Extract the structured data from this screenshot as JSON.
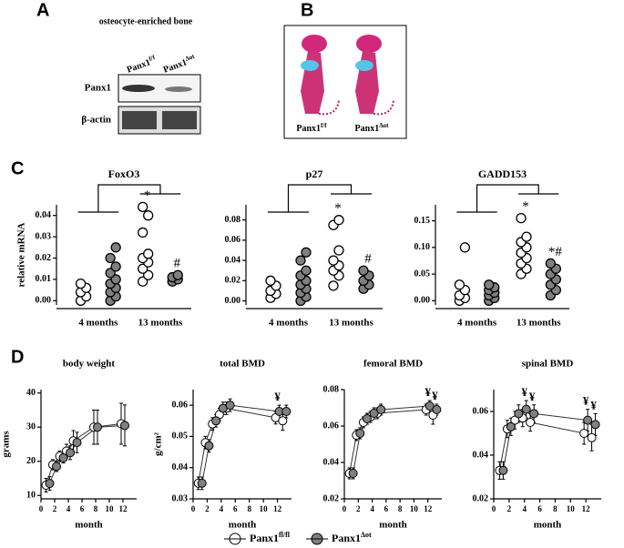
{
  "panel_labels": [
    "A",
    "B",
    "C",
    "D"
  ],
  "blot": {
    "title": "osteocyte-enriched bone",
    "lanes": [
      {
        "base": "Panx1",
        "sup": "f/f"
      },
      {
        "base": "Panx1",
        "sup": "Δot"
      }
    ],
    "rows": [
      "Panx1",
      "β-actin"
    ]
  },
  "skeleton": {
    "labels": [
      {
        "base": "Panx1",
        "sup": "f/f"
      },
      {
        "base": "Panx1",
        "sup": "Δot"
      }
    ]
  },
  "legend": [
    {
      "base": "Panx1",
      "sup": "fl/fl",
      "color": "#ffffff"
    },
    {
      "base": "Panx1",
      "sup": "Δot",
      "color": "#808080"
    }
  ],
  "chart_data": [
    {
      "type": "dot",
      "title": "FoxO3",
      "ylabel": "relative mRNA",
      "categories": [
        "4 months",
        "13 months"
      ],
      "ylim": [
        -0.002,
        0.045
      ],
      "yticks": [
        {
          "value": 0,
          "label": "0.00"
        },
        0.01,
        0.02,
        0.03,
        0.04
      ],
      "series": [
        {
          "color": "#ffffff",
          "values": [
            [
              0.0,
              0.002,
              0.004,
              0.006,
              0.008
            ],
            [
              0.009,
              0.012,
              0.015,
              0.018,
              0.02,
              0.022,
              0.032,
              0.04,
              0.044
            ]
          ],
          "annotations": [
            null,
            "*"
          ]
        },
        {
          "color": "#808080",
          "values": [
            [
              0.0,
              0.002,
              0.004,
              0.006,
              0.008,
              0.01,
              0.013,
              0.016,
              0.02,
              0.025
            ],
            [
              0.009,
              0.01,
              0.011,
              0.012
            ]
          ],
          "annotations": [
            null,
            "#"
          ]
        }
      ]
    },
    {
      "type": "dot",
      "title": "p27",
      "categories": [
        "4 months",
        "13 months"
      ],
      "ylim": [
        -0.004,
        0.095
      ],
      "yticks": [
        {
          "value": 0,
          "label": "0.00"
        },
        0.02,
        0.04,
        0.06,
        0.08
      ],
      "series": [
        {
          "color": "#ffffff",
          "values": [
            [
              0.003,
              0.007,
              0.01,
              0.015,
              0.02
            ],
            [
              0.015,
              0.025,
              0.03,
              0.035,
              0.04,
              0.05,
              0.075,
              0.08
            ]
          ],
          "annotations": [
            null,
            "*"
          ]
        },
        {
          "color": "#808080",
          "values": [
            [
              0.0,
              0.004,
              0.008,
              0.012,
              0.016,
              0.02,
              0.025,
              0.03,
              0.04,
              0.048
            ],
            [
              0.012,
              0.016,
              0.02,
              0.025,
              0.03
            ]
          ],
          "annotations": [
            null,
            "#"
          ]
        }
      ]
    },
    {
      "type": "dot",
      "title": "GADD153",
      "categories": [
        "4 months",
        "13 months"
      ],
      "ylim": [
        -0.008,
        0.18
      ],
      "yticks": [
        {
          "value": 0,
          "label": "0.00"
        },
        0.05,
        {
          "value": 0.1,
          "label": "0.10"
        },
        0.15
      ],
      "series": [
        {
          "color": "#ffffff",
          "values": [
            [
              0.0,
              0.005,
              0.01,
              0.02,
              0.03,
              0.1
            ],
            [
              0.05,
              0.06,
              0.07,
              0.08,
              0.09,
              0.1,
              0.11,
              0.12,
              0.155
            ]
          ],
          "annotations": [
            null,
            "*"
          ]
        },
        {
          "color": "#808080",
          "values": [
            [
              0.0,
              0.005,
              0.01,
              0.015,
              0.02,
              0.025,
              0.03
            ],
            [
              0.01,
              0.02,
              0.03,
              0.04,
              0.05,
              0.06,
              0.07
            ]
          ],
          "annotations": [
            null,
            "*#"
          ]
        }
      ]
    },
    {
      "type": "line",
      "title": "body weight",
      "ylabel": "grams",
      "xlabel": "month",
      "x": [
        1,
        2,
        3,
        4,
        5,
        8,
        12
      ],
      "xlim": [
        0,
        14
      ],
      "xticks": [
        0,
        2,
        4,
        6,
        8,
        10,
        12
      ],
      "ylim": [
        9,
        41
      ],
      "yticks": [
        10,
        20,
        30,
        40
      ],
      "series": [
        {
          "color": "#ffffff",
          "values": [
            13,
            19,
            21.5,
            23,
            26,
            30,
            31
          ],
          "errors": [
            2,
            1.5,
            1.5,
            2,
            3,
            5,
            6
          ]
        },
        {
          "color": "#808080",
          "values": [
            13.5,
            18.5,
            21,
            22.5,
            25.5,
            30,
            30.5
          ],
          "errors": [
            2,
            1.5,
            1.5,
            2,
            3,
            5,
            6
          ]
        }
      ]
    },
    {
      "type": "line",
      "title": "total BMD",
      "ylabel": "g/cm²",
      "xlabel": "month",
      "x": [
        1,
        2,
        3,
        4,
        5,
        12,
        13
      ],
      "xlim": [
        0,
        14
      ],
      "xticks": [
        0,
        2,
        4,
        6,
        8,
        10,
        12
      ],
      "ylim": [
        0.03,
        0.065
      ],
      "yticks": [
        0.03,
        0.04,
        0.05,
        0.06
      ],
      "annotations": [
        null,
        null,
        null,
        null,
        null,
        "¥",
        null
      ],
      "series": [
        {
          "color": "#ffffff",
          "values": [
            0.035,
            0.048,
            0.054,
            0.057,
            0.059,
            0.056,
            0.055
          ],
          "errors": [
            0.002,
            0.002,
            0.002,
            0.002,
            0.002,
            0.002,
            0.003
          ]
        },
        {
          "color": "#808080",
          "values": [
            0.035,
            0.047,
            0.055,
            0.059,
            0.06,
            0.058,
            0.058
          ],
          "errors": [
            0.002,
            0.002,
            0.002,
            0.002,
            0.002,
            0.002,
            0.002
          ]
        }
      ]
    },
    {
      "type": "line",
      "title": "femoral BMD",
      "xlabel": "month",
      "x": [
        1,
        2,
        3,
        4,
        5,
        12,
        13
      ],
      "xlim": [
        0,
        14
      ],
      "xticks": [
        0,
        2,
        4,
        6,
        8,
        10,
        12
      ],
      "ylim": [
        0.02,
        0.08
      ],
      "yticks": [
        0.02,
        0.04,
        0.06,
        0.08
      ],
      "annotations": [
        null,
        null,
        null,
        null,
        null,
        "¥",
        "¥"
      ],
      "series": [
        {
          "color": "#ffffff",
          "values": [
            0.034,
            0.055,
            0.062,
            0.065,
            0.067,
            0.069,
            0.066
          ],
          "errors": [
            0.003,
            0.003,
            0.003,
            0.003,
            0.003,
            0.003,
            0.005
          ]
        },
        {
          "color": "#808080",
          "values": [
            0.034,
            0.056,
            0.064,
            0.067,
            0.069,
            0.071,
            0.069
          ],
          "errors": [
            0.003,
            0.003,
            0.003,
            0.003,
            0.003,
            0.003,
            0.003
          ]
        }
      ]
    },
    {
      "type": "line",
      "title": "spinal BMD",
      "xlabel": "month",
      "x": [
        1,
        2,
        3,
        4,
        5,
        12,
        13
      ],
      "xlim": [
        0,
        14
      ],
      "xticks": [
        0,
        2,
        4,
        6,
        8,
        10,
        12
      ],
      "ylim": [
        0.02,
        0.07
      ],
      "yticks": [
        0.02,
        0.04,
        0.06
      ],
      "annotations": [
        null,
        null,
        null,
        "¥",
        "¥",
        "¥",
        "¥"
      ],
      "series": [
        {
          "color": "#ffffff",
          "values": [
            0.033,
            0.052,
            0.056,
            0.057,
            0.055,
            0.05,
            0.048
          ],
          "errors": [
            0.004,
            0.004,
            0.004,
            0.004,
            0.004,
            0.005,
            0.006
          ]
        },
        {
          "color": "#808080",
          "values": [
            0.033,
            0.053,
            0.059,
            0.061,
            0.059,
            0.056,
            0.054
          ],
          "errors": [
            0.004,
            0.004,
            0.004,
            0.004,
            0.004,
            0.005,
            0.005
          ]
        }
      ]
    }
  ]
}
